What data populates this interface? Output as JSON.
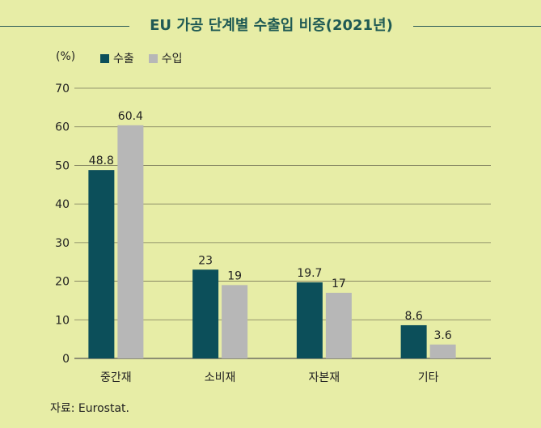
{
  "colors": {
    "background": "#e7eda6",
    "title": "#1f5a54",
    "export": "#0c4f5a",
    "import": "#b7b7b7",
    "grid": "#7a7a5a"
  },
  "header": {
    "title": "EU 가공 단계별 수출입 비중(2021년)"
  },
  "footer": {
    "source": "자료: Eurostat."
  },
  "chart_data": {
    "type": "bar",
    "title": "EU 가공 단계별 수출입 비중(2021년)",
    "unit_label": "(%)",
    "categories": [
      "중간재",
      "소비재",
      "자본재",
      "기타"
    ],
    "series": [
      {
        "name": "수출",
        "values": [
          48.8,
          23,
          19.7,
          8.6
        ],
        "value_labels": [
          "48.8",
          "23",
          "19.7",
          "8.6"
        ]
      },
      {
        "name": "수입",
        "values": [
          60.4,
          19,
          17,
          3.6
        ],
        "value_labels": [
          "60.4",
          "19",
          "17",
          "3.6"
        ]
      }
    ],
    "ylim": [
      0,
      70
    ],
    "yticks": [
      0,
      10,
      20,
      30,
      40,
      50,
      60,
      70
    ],
    "grid": true,
    "legend_position": "top-left"
  }
}
